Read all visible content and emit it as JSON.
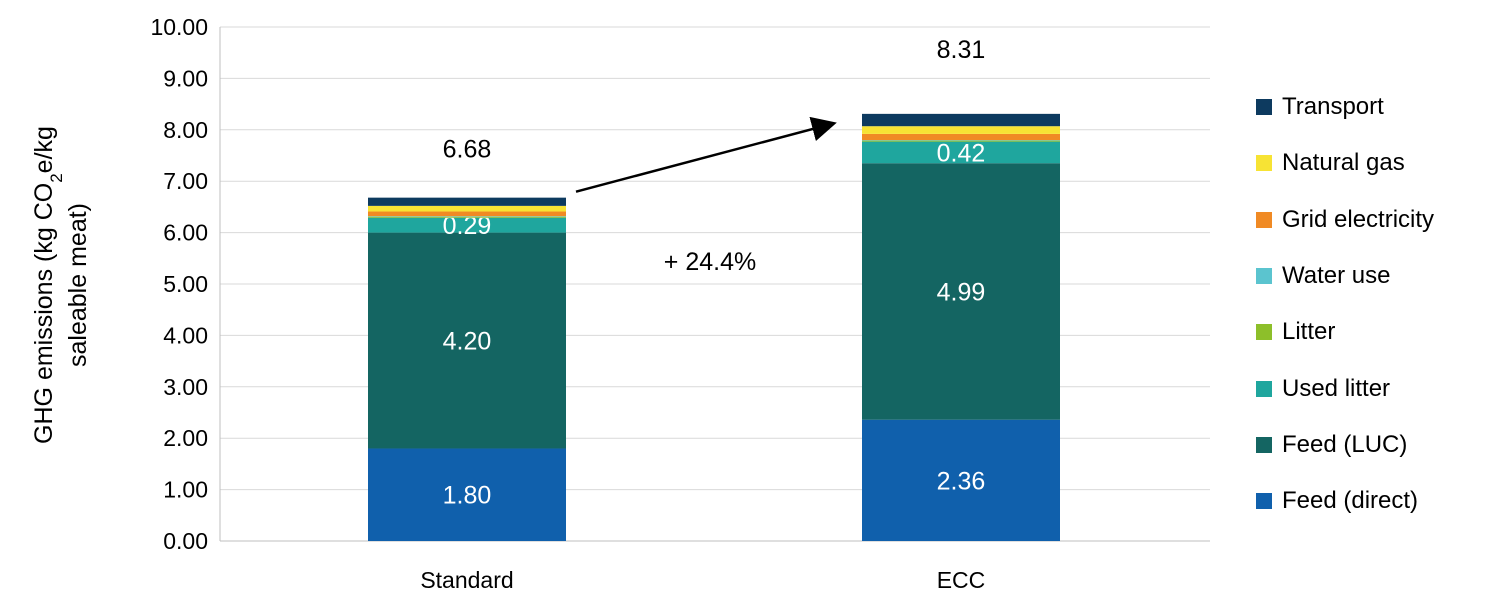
{
  "chart_data": {
    "type": "bar",
    "stacked": true,
    "categories": [
      "Standard",
      "ECC"
    ],
    "ylim": [
      0,
      10
    ],
    "yticks": [
      "0.00",
      "1.00",
      "2.00",
      "3.00",
      "4.00",
      "5.00",
      "6.00",
      "7.00",
      "8.00",
      "9.00",
      "10.00"
    ],
    "ylabel_line1": "GHG emissions (kg CO",
    "ylabel_sub": "2",
    "ylabel_line1_end": "e/kg",
    "ylabel_line2": "saleable meat)",
    "grid": true,
    "legend_position": "right",
    "series": [
      {
        "name": "Feed (direct)",
        "color": "#1060AC",
        "values": [
          1.8,
          2.36
        ],
        "labels": [
          "1.80",
          "2.36"
        ]
      },
      {
        "name": "Feed (LUC)",
        "color": "#146562",
        "values": [
          4.2,
          4.99
        ],
        "labels": [
          "4.20",
          "4.99"
        ]
      },
      {
        "name": "Used litter",
        "color": "#1FA69E",
        "values": [
          0.29,
          0.42
        ],
        "labels": [
          "0.29",
          "0.42"
        ]
      },
      {
        "name": "Litter",
        "color": "#8DBF2A",
        "values": [
          0.02,
          0.02
        ],
        "labels": [
          "",
          ""
        ]
      },
      {
        "name": "Water use",
        "color": "#5BC4CF",
        "values": [
          0.01,
          0.01
        ],
        "labels": [
          "",
          ""
        ]
      },
      {
        "name": "Grid electricity",
        "color": "#F08A24",
        "values": [
          0.09,
          0.12
        ],
        "labels": [
          "",
          ""
        ]
      },
      {
        "name": "Natural gas",
        "color": "#F7E334",
        "values": [
          0.11,
          0.15
        ],
        "labels": [
          "",
          ""
        ]
      },
      {
        "name": "Transport",
        "color": "#0D3A5F",
        "values": [
          0.16,
          0.24
        ],
        "labels": [
          "",
          ""
        ]
      }
    ],
    "totals": [
      "6.68",
      "8.31"
    ],
    "annotation": "+ 24.4%"
  }
}
